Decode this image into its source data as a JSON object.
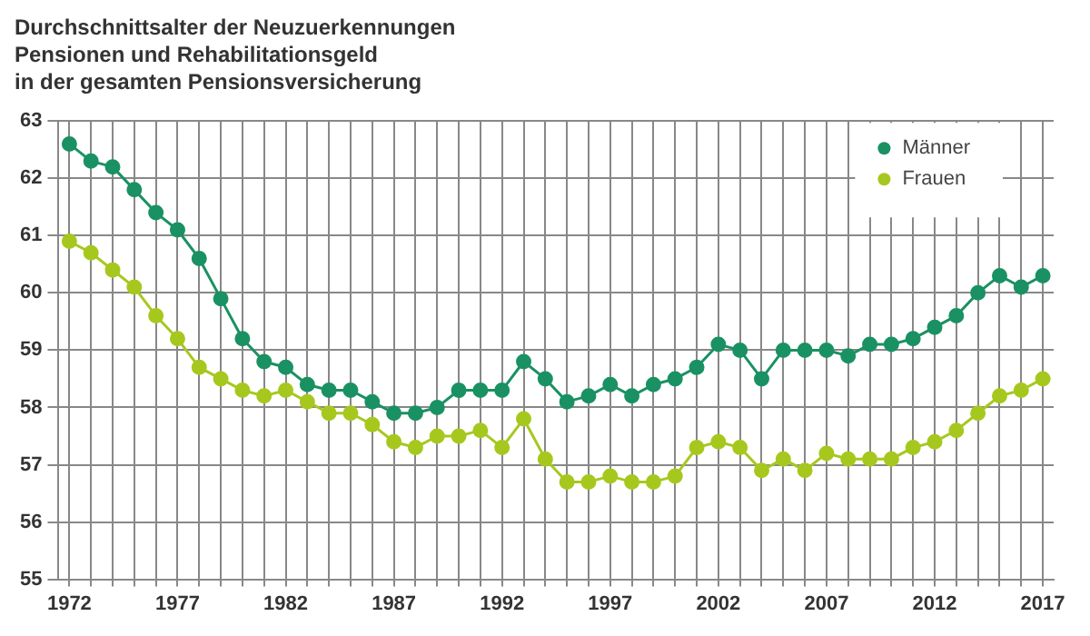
{
  "chart_data": {
    "type": "line",
    "title": "Durchschnittsalter der Neuzuerkennungen\nPensionen und Rehabilitationsgeld\nin der gesamten Pensionsversicherung",
    "x": [
      1972,
      1973,
      1974,
      1975,
      1976,
      1977,
      1978,
      1979,
      1980,
      1981,
      1982,
      1983,
      1984,
      1985,
      1986,
      1987,
      1988,
      1989,
      1990,
      1991,
      1992,
      1993,
      1994,
      1995,
      1996,
      1997,
      1998,
      1999,
      2000,
      2001,
      2002,
      2003,
      2004,
      2005,
      2006,
      2007,
      2008,
      2009,
      2010,
      2011,
      2012,
      2013,
      2014,
      2015,
      2016,
      2017
    ],
    "series": [
      {
        "name": "Männer",
        "color": "#1a9163",
        "values": [
          62.6,
          62.3,
          62.2,
          61.8,
          61.4,
          61.1,
          60.6,
          59.9,
          59.2,
          58.8,
          58.7,
          58.4,
          58.3,
          58.3,
          58.1,
          57.9,
          57.9,
          58.0,
          58.3,
          58.3,
          58.3,
          58.8,
          58.5,
          58.1,
          58.2,
          58.4,
          58.2,
          58.4,
          58.5,
          58.7,
          59.1,
          59.0,
          58.5,
          59.0,
          59.0,
          59.0,
          58.9,
          59.1,
          59.1,
          59.2,
          59.4,
          59.6,
          60.0,
          60.3,
          60.1,
          60.3
        ]
      },
      {
        "name": "Frauen",
        "color": "#a6c81e",
        "values": [
          60.9,
          60.7,
          60.4,
          60.1,
          59.6,
          59.2,
          58.7,
          58.5,
          58.3,
          58.2,
          58.3,
          58.1,
          57.9,
          57.9,
          57.7,
          57.4,
          57.3,
          57.5,
          57.5,
          57.6,
          57.3,
          57.8,
          57.1,
          56.7,
          56.7,
          56.8,
          56.7,
          56.7,
          56.8,
          57.3,
          57.4,
          57.3,
          56.9,
          57.1,
          56.9,
          57.2,
          57.1,
          57.1,
          57.1,
          57.3,
          57.4,
          57.6,
          57.9,
          58.2,
          58.3,
          58.5
        ]
      }
    ],
    "xlim": [
      1971.5,
      2017.5
    ],
    "xticks": [
      1972,
      {
        "value": 1973,
        "label": null
      },
      {
        "value": 1974,
        "label": null
      },
      {
        "value": 1975,
        "label": null
      },
      {
        "value": 1976,
        "label": null
      },
      1977,
      {
        "value": 1978,
        "label": null
      },
      {
        "value": 1979,
        "label": null
      },
      {
        "value": 1980,
        "label": null
      },
      {
        "value": 1981,
        "label": null
      },
      1982,
      {
        "value": 1983,
        "label": null
      },
      {
        "value": 1984,
        "label": null
      },
      {
        "value": 1985,
        "label": null
      },
      {
        "value": 1986,
        "label": null
      },
      1987,
      {
        "value": 1988,
        "label": null
      },
      {
        "value": 1989,
        "label": null
      },
      {
        "value": 1990,
        "label": null
      },
      {
        "value": 1991,
        "label": null
      },
      1992,
      {
        "value": 1993,
        "label": null
      },
      {
        "value": 1994,
        "label": null
      },
      {
        "value": 1995,
        "label": null
      },
      {
        "value": 1996,
        "label": null
      },
      1997,
      {
        "value": 1998,
        "label": null
      },
      {
        "value": 1999,
        "label": null
      },
      {
        "value": 2000,
        "label": null
      },
      {
        "value": 2001,
        "label": null
      },
      2002,
      {
        "value": 2003,
        "label": null
      },
      {
        "value": 2004,
        "label": null
      },
      {
        "value": 2005,
        "label": null
      },
      {
        "value": 2006,
        "label": null
      },
      2007,
      {
        "value": 2008,
        "label": null
      },
      {
        "value": 2009,
        "label": null
      },
      {
        "value": 2010,
        "label": null
      },
      {
        "value": 2011,
        "label": null
      },
      2012,
      {
        "value": 2013,
        "label": null
      },
      {
        "value": 2014,
        "label": null
      },
      {
        "value": 2015,
        "label": null
      },
      {
        "value": 2016,
        "label": null
      },
      2017
    ],
    "ylim": [
      55,
      63
    ],
    "yticks": [
      55,
      56,
      57,
      58,
      59,
      60,
      61,
      62,
      63
    ],
    "grid": true,
    "legend": "top right",
    "marker": "circle",
    "line_style": "solid"
  }
}
